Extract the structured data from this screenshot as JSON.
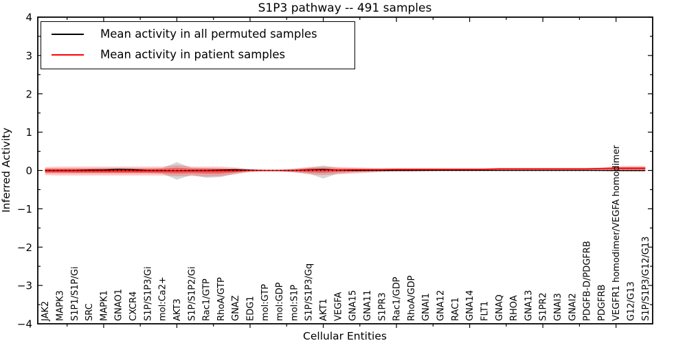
{
  "title": "S1P3 pathway -- 491 samples",
  "xlabel": "Cellular Entities",
  "ylabel": "Inferred Activity",
  "legend": {
    "items": [
      {
        "label": "Mean activity in all permuted samples",
        "color": "#000000"
      },
      {
        "label": "Mean activity in patient samples",
        "color": "#ff0000"
      }
    ]
  },
  "chart_data": {
    "type": "line",
    "title": "S1P3 pathway -- 491 samples",
    "xlabel": "Cellular Entities",
    "ylabel": "Inferred Activity",
    "ylim": [
      -4,
      4
    ],
    "grid": false,
    "legend_position": "upper left",
    "zero_line": 0,
    "yticks": [
      {
        "v": 4,
        "label": "4"
      },
      {
        "v": 3,
        "label": "3"
      },
      {
        "v": 2,
        "label": "2"
      },
      {
        "v": 1,
        "label": "1"
      },
      {
        "v": 0,
        "label": "0"
      },
      {
        "v": -1,
        "label": "−1"
      },
      {
        "v": -2,
        "label": "−2"
      },
      {
        "v": -3,
        "label": "−3"
      },
      {
        "v": -4,
        "label": "−4"
      }
    ],
    "y_minor": [
      3.5,
      2.5,
      1.5,
      0.5,
      -0.5,
      -1.5,
      -2.5,
      -3.5
    ],
    "x_major": [
      5,
      10,
      15,
      20,
      25,
      30,
      35,
      40
    ],
    "x_minor": [
      2.5,
      7.5,
      12.5,
      17.5,
      22.5,
      27.5,
      32.5,
      37.5
    ],
    "categories": [
      "JAK2",
      "MAPK3",
      "S1P1/S1P/Gi",
      "SRC",
      "MAPK1",
      "GNAO1",
      "CXCR4",
      "S1P/S1P3/Gi",
      "mol:Ca2+",
      "AKT3",
      "S1P/S1P2/Gi",
      "Rac1/GTP",
      "RhoA/GTP",
      "GNAZ",
      "EDG1",
      "mol:GTP",
      "mol:GDP",
      "mol:S1P",
      "S1P/S1P3/Gq",
      "AKT1",
      "VEGFA",
      "GNA15",
      "GNA11",
      "S1PR3",
      "Rac1/GDP",
      "RhoA/GDP",
      "GNAI1",
      "GNA12",
      "RAC1",
      "GNA14",
      "FLT1",
      "GNAQ",
      "RHOA",
      "GNA13",
      "S1PR2",
      "GNAI3",
      "GNAI2",
      "PDGFB-D/PDGFRB",
      "PDGFRB",
      "VEGFR1 homodimer/VEGFA homodimer",
      "G12/G13",
      "S1P/S1P3/G12/G13"
    ],
    "series": [
      {
        "id": "permuted",
        "name": "Mean activity in all permuted samples",
        "color": "#000000",
        "width": 1.3,
        "values": [
          0,
          0,
          0,
          0.01,
          0.01,
          0.03,
          0.02,
          0,
          0,
          -0.01,
          0,
          0,
          0.01,
          0.02,
          0.01,
          0,
          0,
          0,
          0.02,
          0.03,
          0.01,
          0,
          0,
          0,
          0,
          0,
          0,
          0,
          0,
          0,
          0,
          0,
          0,
          0,
          0,
          0,
          0,
          0,
          0,
          0,
          0,
          0
        ]
      },
      {
        "id": "patient",
        "name": "Mean activity in patient samples",
        "color": "#ff0000",
        "width": 1.7,
        "values": [
          -0.01,
          -0.01,
          -0.01,
          -0.01,
          -0.01,
          -0.01,
          -0.01,
          -0.01,
          -0.01,
          -0.01,
          -0.01,
          -0.01,
          -0.01,
          -0.01,
          0,
          0,
          0,
          0,
          0.01,
          0.01,
          0.01,
          0.02,
          0.02,
          0.02,
          0.03,
          0.03,
          0.03,
          0.03,
          0.03,
          0.03,
          0.03,
          0.04,
          0.04,
          0.04,
          0.04,
          0.04,
          0.04,
          0.04,
          0.05,
          0.06,
          0.06,
          0.06
        ]
      }
    ],
    "bands": [
      {
        "name": "permuted-range",
        "color": "rgba(128,128,128,0.32)",
        "upper": [
          0.05,
          0.05,
          0.05,
          0.05,
          0.06,
          0.06,
          0.06,
          0.05,
          0.06,
          0.22,
          0.07,
          0.06,
          0.05,
          0.05,
          0.03,
          0.01,
          0.01,
          0.04,
          0.07,
          0.13,
          0.07,
          0.05,
          0.04,
          0.03,
          0.03,
          0.02,
          0.02,
          0.02,
          0.02,
          0.02,
          0.02,
          0.02,
          0.02,
          0.02,
          0.02,
          0.02,
          0.02,
          0.02,
          0.03,
          0.05,
          0.06,
          0.06
        ],
        "lower": [
          -0.05,
          -0.05,
          -0.06,
          -0.06,
          -0.06,
          -0.06,
          -0.06,
          -0.06,
          -0.08,
          -0.24,
          -0.12,
          -0.19,
          -0.17,
          -0.08,
          -0.03,
          -0.01,
          -0.02,
          -0.05,
          -0.08,
          -0.21,
          -0.08,
          -0.05,
          -0.04,
          -0.03,
          -0.02,
          -0.02,
          -0.01,
          -0.01,
          -0.01,
          -0.01,
          -0.01,
          -0.01,
          -0.01,
          -0.01,
          -0.01,
          -0.01,
          -0.01,
          -0.01,
          -0.02,
          -0.03,
          -0.03,
          -0.03
        ]
      },
      {
        "name": "patient-range-outer",
        "color": "rgba(255,0,0,0.22)",
        "upper": [
          0.09,
          0.1,
          0.1,
          0.1,
          0.1,
          0.1,
          0.1,
          0.1,
          0.1,
          0.14,
          0.1,
          0.1,
          0.1,
          0.08,
          0.04,
          0.02,
          0.02,
          0.05,
          0.09,
          0.1,
          0.09,
          0.08,
          0.07,
          0.06,
          0.06,
          0.06,
          0.06,
          0.06,
          0.06,
          0.06,
          0.06,
          0.07,
          0.07,
          0.07,
          0.07,
          0.07,
          0.07,
          0.07,
          0.08,
          0.11,
          0.12,
          0.12
        ],
        "lower": [
          -0.12,
          -0.13,
          -0.13,
          -0.13,
          -0.13,
          -0.13,
          -0.13,
          -0.13,
          -0.13,
          -0.15,
          -0.14,
          -0.16,
          -0.15,
          -0.1,
          -0.04,
          -0.02,
          -0.02,
          -0.05,
          -0.1,
          -0.12,
          -0.1,
          -0.08,
          -0.06,
          -0.04,
          -0.03,
          -0.03,
          -0.02,
          -0.01,
          -0.01,
          -0.01,
          -0.01,
          -0.01,
          -0.01,
          -0.01,
          -0.01,
          -0.01,
          -0.01,
          -0.01,
          -0.01,
          -0.02,
          -0.03,
          -0.03
        ]
      },
      {
        "name": "patient-range-inner",
        "color": "rgba(255,0,0,0.42)",
        "upper": [
          0.05,
          0.05,
          0.05,
          0.05,
          0.05,
          0.05,
          0.05,
          0.05,
          0.05,
          0.07,
          0.05,
          0.05,
          0.05,
          0.04,
          0.01,
          0.01,
          0.01,
          0.02,
          0.05,
          0.05,
          0.04,
          0.04,
          0.04,
          0.04,
          0.04,
          0.04,
          0.04,
          0.04,
          0.04,
          0.04,
          0.04,
          0.05,
          0.05,
          0.05,
          0.05,
          0.05,
          0.05,
          0.05,
          0.06,
          0.08,
          0.08,
          0.08
        ],
        "lower": [
          -0.07,
          -0.07,
          -0.07,
          -0.07,
          -0.07,
          -0.07,
          -0.07,
          -0.07,
          -0.07,
          -0.08,
          -0.07,
          -0.08,
          -0.08,
          -0.05,
          -0.01,
          -0.01,
          -0.01,
          -0.02,
          -0.05,
          -0.06,
          -0.04,
          -0.03,
          -0.02,
          -0.01,
          0,
          0,
          0.01,
          0.01,
          0.01,
          0.01,
          0.01,
          0.02,
          0.02,
          0.02,
          0.02,
          0.02,
          0.02,
          0.02,
          0.03,
          0.03,
          0.03,
          0.03
        ]
      }
    ]
  }
}
